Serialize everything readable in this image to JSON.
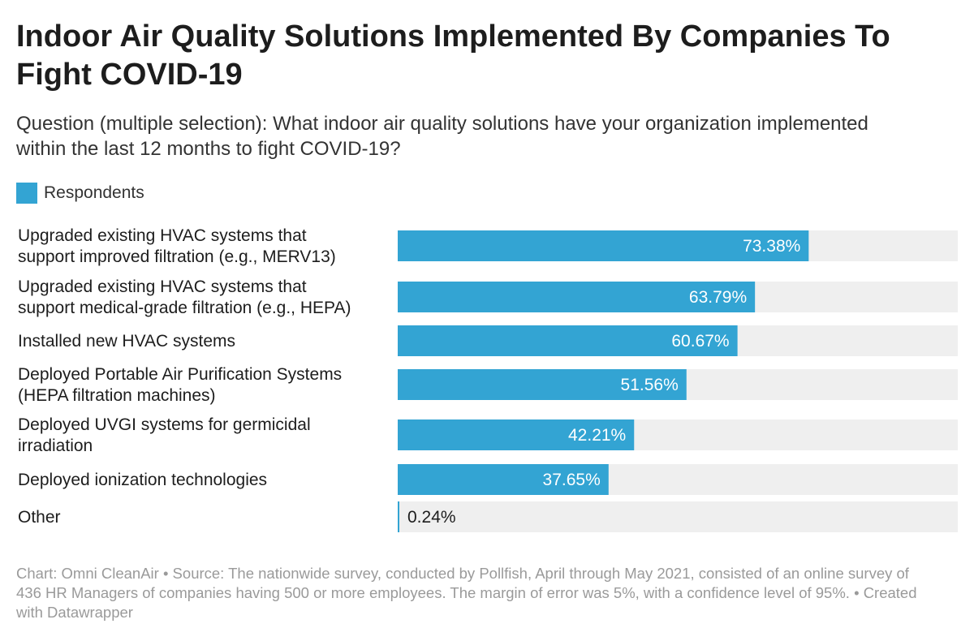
{
  "title": "Indoor Air Quality Solutions Implemented By Companies To Fight COVID-19",
  "subtitle": "Question (multiple selection): What indoor air quality solutions have your organization implemented within the last 12 months to fight COVID-19?",
  "footer": "Chart: Omni CleanAir • Source: The nationwide survey, conducted by Pollfish, April through May 2021, consisted of an online survey of 436 HR Managers of companies having 500 or more employees. The margin of error was 5%, with a confidence level of 95%. • Created with Datawrapper",
  "chart_data": {
    "type": "bar",
    "orientation": "horizontal",
    "title": "Indoor Air Quality Solutions Implemented By Companies To Fight COVID-19",
    "xlim": [
      0,
      100
    ],
    "grid": false,
    "legend": "top-left",
    "bar_color": "#33a4d3",
    "track_color": "#efefef",
    "categories": [
      [
        "Upgraded existing HVAC systems that",
        "support improved filtration (e.g., MERV13)"
      ],
      [
        "Upgraded existing HVAC systems that",
        "support medical-grade filtration (e.g., HEPA)"
      ],
      [
        "Installed new HVAC systems"
      ],
      [
        "Deployed Portable Air Purification Systems",
        "(HEPA filtration machines)"
      ],
      [
        "Deployed UVGI systems for germicidal",
        "irradiation"
      ],
      [
        "Deployed ionization technologies"
      ],
      [
        "Other"
      ]
    ],
    "series": [
      {
        "name": "Respondents",
        "values": [
          73.38,
          63.79,
          60.67,
          51.56,
          42.21,
          37.65,
          0.24
        ],
        "labels": [
          "73.38%",
          "63.79%",
          "60.67%",
          "51.56%",
          "42.21%",
          "37.65%",
          "0.24%"
        ]
      }
    ]
  }
}
